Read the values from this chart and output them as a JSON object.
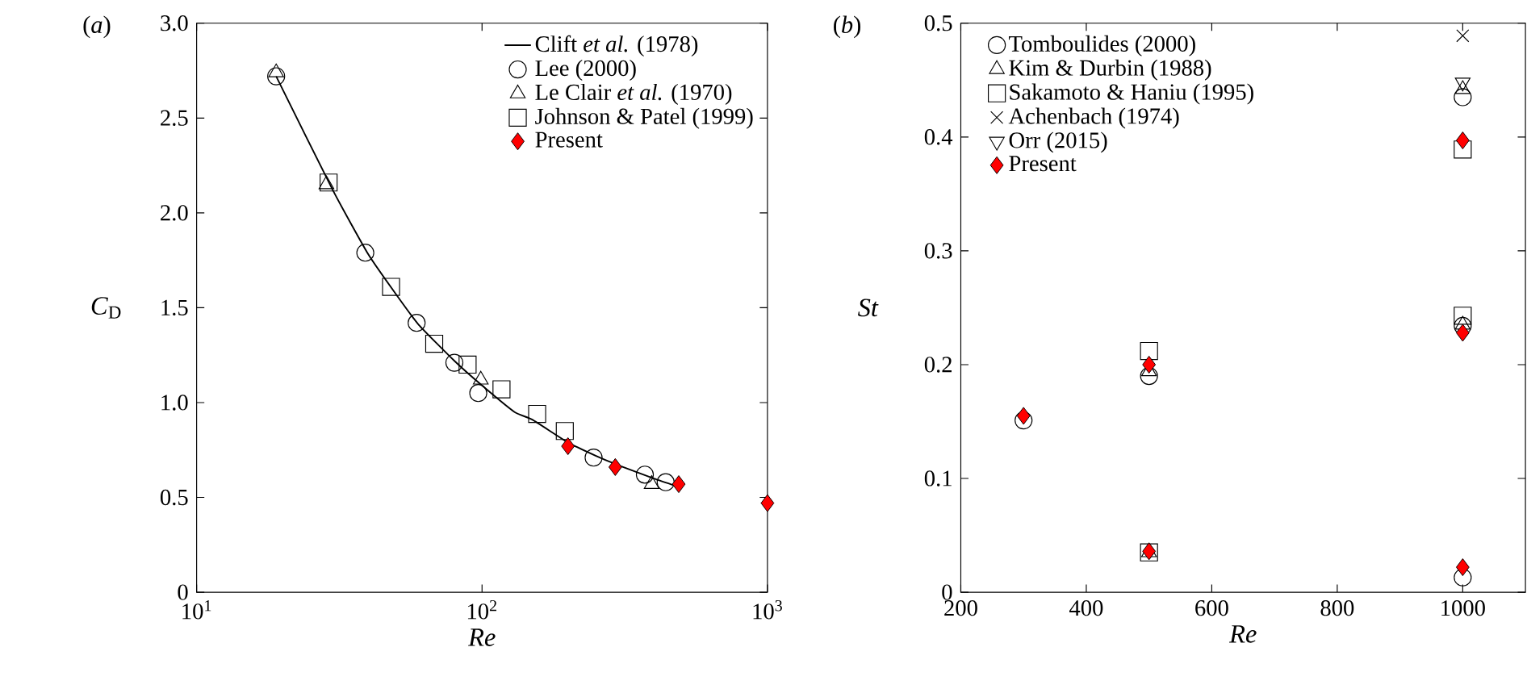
{
  "chart_data": [
    {
      "type": "scatter",
      "title": "(*a*)",
      "xlabel": "*Re*",
      "ylabel": "*C*$_{D}$",
      "log": "x",
      "xlim": [
        10,
        1000
      ],
      "xticks": [
        {
          "value": 10,
          "label": "10$^{1}$"
        },
        {
          "value": 100,
          "label": "10$^{2}$"
        },
        {
          "value": 1000,
          "label": "10$^{3}$"
        }
      ],
      "ylim": [
        0,
        3
      ],
      "yticks": [
        0,
        0.5,
        {
          "value": 1,
          "label": "1.0"
        },
        1.5,
        {
          "value": 2,
          "label": "2.0"
        },
        2.5,
        {
          "value": 3,
          "label": "3.0"
        }
      ],
      "legend": "top right",
      "series": [
        {
          "name": "Clift *et al.* (1978)",
          "type": "line",
          "color": "#000000",
          "x": [
            19,
            30,
            40,
            50,
            60,
            80,
            100,
            130,
            150,
            200,
            250,
            300,
            400,
            480
          ],
          "values": [
            2.72,
            2.12,
            1.78,
            1.57,
            1.41,
            1.22,
            1.09,
            0.95,
            0.91,
            0.79,
            0.72,
            0.67,
            0.6,
            0.56
          ]
        },
        {
          "name": "Lee (2000)",
          "marker": "circle",
          "color": "#000000",
          "x": [
            19,
            39,
            59,
            80,
            97,
            246,
            372,
            440
          ],
          "values": [
            2.72,
            1.79,
            1.42,
            1.21,
            1.05,
            0.71,
            0.62,
            0.58
          ]
        },
        {
          "name": "Le Clair *et al.* (1970)",
          "marker": "triangle",
          "color": "#000000",
          "x": [
            19,
            28.5,
            99,
            393
          ],
          "values": [
            2.74,
            2.15,
            1.12,
            0.57
          ]
        },
        {
          "name": "Johnson & Patel (1999)",
          "marker": "square",
          "color": "#000000",
          "x": [
            29,
            48,
            68,
            89,
            117,
            156,
            195
          ],
          "values": [
            2.16,
            1.61,
            1.31,
            1.2,
            1.07,
            0.94,
            0.85
          ]
        },
        {
          "name": "Present",
          "marker": "diamond",
          "color": "#ff0000",
          "x": [
            200,
            293,
            489,
            1000
          ],
          "values": [
            0.77,
            0.66,
            0.57,
            0.47
          ]
        }
      ]
    },
    {
      "type": "scatter",
      "title": "(*b*)",
      "xlabel": "*Re*",
      "ylabel": "*St*",
      "xlim": [
        200,
        1100
      ],
      "xticks": [
        200,
        400,
        600,
        800,
        1000
      ],
      "ylim": [
        0,
        0.5
      ],
      "yticks": [
        0,
        0.1,
        0.2,
        0.3,
        0.4,
        0.5
      ],
      "legend": "top left",
      "series": [
        {
          "name": "Tomboulides (2000)",
          "marker": "circle",
          "color": "#000000",
          "x": [
            300,
            500,
            1000,
            1000,
            1000
          ],
          "values": [
            0.151,
            0.19,
            0.234,
            0.013,
            0.435
          ]
        },
        {
          "name": "Kim & Durbin (1988)",
          "marker": "triangle",
          "color": "#000000",
          "x": [
            500,
            500,
            1000,
            1000
          ],
          "values": [
            0.194,
            0.035,
            0.235,
            0.442
          ]
        },
        {
          "name": "Sakamoto & Haniu (1995)",
          "marker": "square",
          "color": "#000000",
          "x": [
            500,
            500,
            1000,
            1000
          ],
          "values": [
            0.212,
            0.035,
            0.243,
            0.389
          ]
        },
        {
          "name": "Achenbach (1974)",
          "marker": "cross",
          "color": "#000000",
          "x": [
            1000
          ],
          "values": [
            0.489
          ]
        },
        {
          "name": "Orr (2015)",
          "marker": "triangle-down",
          "color": "#000000",
          "x": [
            1000
          ],
          "values": [
            0.448
          ]
        },
        {
          "name": "Present",
          "marker": "diamond",
          "color": "#ff0000",
          "x": [
            300,
            500,
            500,
            1000,
            1000,
            1000
          ],
          "values": [
            0.155,
            0.2,
            0.036,
            0.397,
            0.228,
            0.022
          ]
        }
      ]
    }
  ]
}
